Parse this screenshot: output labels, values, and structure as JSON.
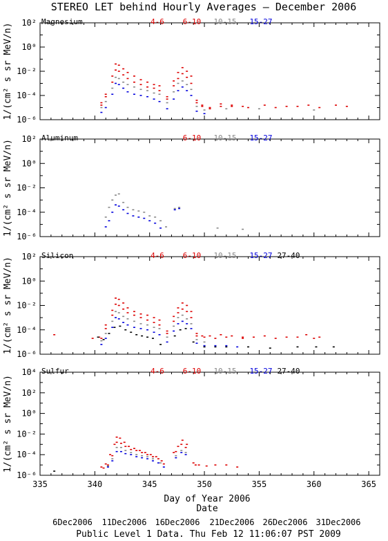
{
  "title": "STEREO LET behind Hourly Averages – December 2006",
  "footer": "Public Level 1 Data. Thu Feb 12 11:06:07 PST 2009",
  "xlabel": "Day of Year 2006",
  "date_label": "Date",
  "ylabel": "1/(cm² s sr MeV/n)",
  "date_ticks": [
    "6Dec2006",
    "11Dec2006",
    "16Dec2006",
    "21Dec2006",
    "26Dec2006",
    "31Dec2006"
  ],
  "colors": {
    "4-6": "#dd0000",
    "6-10": "#dd0000",
    "10-15": "#888888",
    "15-27": "#0000dd",
    "27-40": "#000000"
  },
  "chart_data": [
    {
      "type": "scatter",
      "title": "Magnesium",
      "xlabel": "Day of Year 2006",
      "ylabel": "1/(cm² s sr MeV/n)",
      "xlim": [
        335,
        366
      ],
      "ylim_log10": [
        -6,
        2
      ],
      "yticks": [
        "10²",
        "10⁰",
        "10⁻²",
        "10⁻⁴",
        "10⁻⁶"
      ],
      "xticks": [
        "335",
        "340",
        "345",
        "350",
        "355",
        "360",
        "365"
      ],
      "legend": [
        "4-6",
        "6-10",
        "10-15",
        "15-27"
      ],
      "series": [
        {
          "name": "4-6",
          "color": "#dd0000",
          "x": [
            340.6,
            341.0,
            341.6,
            341.9,
            342.2,
            342.6,
            343.0,
            343.6,
            344.2,
            344.8,
            345.4,
            345.9,
            346.6,
            347.2,
            347.6,
            348.0,
            348.4,
            348.8,
            349.3,
            349.8,
            350.5,
            351.5,
            352.5,
            353.5,
            355.5,
            357.5,
            359.5,
            362.0
          ],
          "y": [
            -4.6,
            -3.9,
            -2.4,
            -1.4,
            -1.5,
            -1.8,
            -2.1,
            -2.4,
            -2.7,
            -2.9,
            -3.1,
            -3.2,
            -4.1,
            -2.8,
            -2.1,
            -1.7,
            -2.0,
            -2.4,
            -4.4,
            -4.8,
            -5.0,
            -4.7,
            -4.8,
            -4.9,
            -4.8,
            -4.9,
            -4.8,
            -4.8
          ]
        },
        {
          "name": "6-10",
          "color": "#dd0000",
          "x": [
            340.6,
            341.0,
            341.6,
            341.9,
            342.2,
            342.6,
            343.0,
            343.6,
            344.2,
            344.8,
            345.4,
            345.9,
            346.6,
            347.2,
            347.6,
            348.0,
            348.4,
            348.8,
            349.3,
            349.8,
            350.5,
            351.5,
            352.5,
            354.0,
            356.5,
            358.5,
            360.5,
            363.0
          ],
          "y": [
            -4.8,
            -4.1,
            -2.9,
            -1.9,
            -2.0,
            -2.3,
            -2.6,
            -2.9,
            -3.1,
            -3.3,
            -3.4,
            -3.6,
            -4.3,
            -3.2,
            -2.6,
            -2.2,
            -2.5,
            -3.0,
            -4.6,
            -4.9,
            -5.1,
            -4.9,
            -4.9,
            -5.0,
            -5.0,
            -4.9,
            -5.0,
            -4.9
          ]
        },
        {
          "name": "10-15",
          "color": "#888888",
          "x": [
            340.6,
            341.0,
            341.6,
            341.9,
            342.2,
            342.6,
            343.0,
            343.6,
            344.2,
            344.8,
            345.4,
            345.9,
            346.6,
            347.2,
            347.6,
            348.0,
            348.4,
            348.8,
            349.3,
            350.0,
            352.0,
            355.0,
            360.0
          ],
          "y": [
            -5.0,
            -4.5,
            -3.4,
            -2.5,
            -2.6,
            -2.9,
            -3.1,
            -3.3,
            -3.5,
            -3.6,
            -3.8,
            -3.9,
            -4.6,
            -3.7,
            -3.0,
            -2.8,
            -3.1,
            -3.5,
            -4.9,
            -5.2,
            -5.1,
            -5.1,
            -5.2
          ]
        },
        {
          "name": "15-27",
          "color": "#0000dd",
          "x": [
            340.6,
            341.0,
            341.6,
            341.9,
            342.2,
            342.6,
            343.0,
            343.6,
            344.2,
            344.8,
            345.4,
            345.9,
            346.6,
            347.2,
            347.6,
            348.0,
            348.4,
            348.8,
            349.3,
            350.0
          ],
          "y": [
            -5.4,
            -5.0,
            -3.9,
            -3.0,
            -3.1,
            -3.4,
            -3.7,
            -3.9,
            -4.0,
            -4.1,
            -4.3,
            -4.5,
            -5.1,
            -4.3,
            -3.6,
            -3.3,
            -3.6,
            -4.0,
            -5.3,
            -5.5
          ]
        }
      ]
    },
    {
      "type": "scatter",
      "title": "Aluminum",
      "xlabel": "Day of Year 2006",
      "ylabel": "1/(cm² s sr MeV/n)",
      "xlim": [
        335,
        366
      ],
      "ylim_log10": [
        -6,
        2
      ],
      "yticks": [
        "10²",
        "10⁰",
        "10⁻²",
        "10⁻⁴",
        "10⁻⁶"
      ],
      "xticks": [
        "335",
        "340",
        "345",
        "350",
        "355",
        "360",
        "365"
      ],
      "legend": [
        "6-10",
        "10-15",
        "15-27"
      ],
      "series": [
        {
          "name": "10-15",
          "color": "#888888",
          "x": [
            341.0,
            341.3,
            341.6,
            341.9,
            342.2,
            342.6,
            343.0,
            343.5,
            344.0,
            344.5,
            345.0,
            345.5,
            346.0,
            346.5,
            347.3,
            347.7,
            351.2,
            353.5
          ],
          "y": [
            -4.4,
            -3.6,
            -3.0,
            -2.6,
            -2.5,
            -3.2,
            -3.6,
            -3.8,
            -3.9,
            -4.0,
            -4.3,
            -4.4,
            -4.7,
            -5.2,
            -3.7,
            -3.6,
            -5.3,
            -5.4
          ]
        },
        {
          "name": "15-27",
          "color": "#0000dd",
          "x": [
            341.0,
            341.3,
            341.6,
            341.9,
            342.2,
            342.6,
            343.0,
            343.5,
            344.0,
            344.5,
            345.0,
            345.5,
            346.0,
            347.3,
            347.7
          ],
          "y": [
            -5.2,
            -4.7,
            -4.0,
            -3.4,
            -3.5,
            -3.8,
            -4.1,
            -4.3,
            -4.4,
            -4.5,
            -4.7,
            -4.9,
            -5.3,
            -3.8,
            -3.7
          ]
        }
      ]
    },
    {
      "type": "scatter",
      "title": "Silicon",
      "xlabel": "Day of Year 2006",
      "ylabel": "1/(cm² s sr MeV/n)",
      "xlim": [
        335,
        366
      ],
      "ylim_log10": [
        -6,
        2
      ],
      "yticks": [
        "10²",
        "10⁰",
        "10⁻²",
        "10⁻⁴",
        "10⁻⁶"
      ],
      "xticks": [
        "335",
        "340",
        "345",
        "350",
        "355",
        "360",
        "365"
      ],
      "legend": [
        "4-6",
        "6-10",
        "10-15",
        "15-27",
        "27-40"
      ],
      "series": [
        {
          "name": "4-6",
          "color": "#dd0000",
          "x": [
            336.3,
            339.8,
            340.4,
            341.0,
            341.6,
            341.9,
            342.2,
            342.6,
            343.0,
            343.6,
            344.2,
            344.8,
            345.4,
            345.9,
            346.6,
            347.2,
            347.6,
            348.0,
            348.4,
            348.8,
            349.3,
            349.8,
            350.5,
            351.5,
            352.5,
            353.5,
            355.5,
            357.5,
            359.3,
            360.5
          ],
          "y": [
            -4.4,
            -4.7,
            -4.6,
            -3.6,
            -2.4,
            -1.4,
            -1.5,
            -1.8,
            -2.2,
            -2.5,
            -2.7,
            -2.8,
            -3.0,
            -3.2,
            -4.1,
            -2.9,
            -2.2,
            -1.8,
            -2.0,
            -2.5,
            -4.3,
            -4.5,
            -4.5,
            -4.4,
            -4.5,
            -4.6,
            -4.5,
            -4.6,
            -4.4,
            -4.6
          ]
        },
        {
          "name": "6-10",
          "color": "#dd0000",
          "x": [
            340.6,
            341.0,
            341.6,
            341.9,
            342.2,
            342.6,
            343.0,
            343.6,
            344.2,
            344.8,
            345.4,
            345.9,
            346.6,
            347.2,
            347.6,
            348.0,
            348.4,
            348.8,
            349.3,
            350.0,
            351.0,
            352.0,
            353.5,
            354.5,
            356.5,
            358.5,
            360.0
          ],
          "y": [
            -4.7,
            -3.9,
            -2.8,
            -1.9,
            -2.0,
            -2.3,
            -2.6,
            -2.8,
            -3.0,
            -3.2,
            -3.4,
            -3.6,
            -4.3,
            -3.3,
            -2.6,
            -2.3,
            -2.5,
            -3.0,
            -4.5,
            -4.6,
            -4.7,
            -4.6,
            -4.7,
            -4.6,
            -4.7,
            -4.6,
            -4.7
          ]
        },
        {
          "name": "10-15",
          "color": "#888888",
          "x": [
            340.6,
            341.0,
            341.6,
            341.9,
            342.2,
            342.6,
            343.0,
            343.6,
            344.2,
            344.8,
            345.4,
            345.9,
            346.6,
            347.2,
            347.6,
            348.0,
            348.4,
            348.8,
            349.3,
            350.0
          ],
          "y": [
            -4.9,
            -4.3,
            -3.3,
            -2.5,
            -2.6,
            -2.9,
            -3.1,
            -3.3,
            -3.5,
            -3.6,
            -3.8,
            -3.9,
            -4.6,
            -3.7,
            -3.0,
            -2.8,
            -3.1,
            -3.5,
            -4.8,
            -5.0
          ]
        },
        {
          "name": "15-27",
          "color": "#0000dd",
          "x": [
            340.6,
            341.0,
            341.6,
            341.9,
            342.2,
            342.6,
            343.0,
            343.6,
            344.2,
            344.8,
            345.4,
            345.9,
            346.6,
            347.2,
            347.6,
            348.0,
            348.4,
            348.8,
            349.3,
            350.0,
            351.0,
            352.0,
            353.0
          ],
          "y": [
            -5.2,
            -4.7,
            -3.8,
            -3.0,
            -3.1,
            -3.4,
            -3.6,
            -3.8,
            -3.9,
            -4.0,
            -4.2,
            -4.4,
            -5.0,
            -4.1,
            -3.5,
            -3.3,
            -3.5,
            -3.9,
            -5.1,
            -5.3,
            -5.3,
            -5.3,
            -5.4
          ]
        },
        {
          "name": "27-40",
          "color": "#000000",
          "x": [
            340.3,
            340.8,
            341.3,
            341.8,
            342.3,
            342.8,
            343.3,
            343.8,
            344.3,
            344.8,
            345.3,
            346.0,
            347.3,
            347.8,
            348.3,
            349.0,
            350.0,
            351.0,
            352.0,
            354.0,
            356.0,
            358.5,
            360.2,
            361.8
          ],
          "y": [
            -4.6,
            -4.8,
            -4.3,
            -3.8,
            -3.7,
            -4.0,
            -4.2,
            -4.4,
            -4.5,
            -4.6,
            -4.7,
            -5.2,
            -4.5,
            -4.0,
            -3.9,
            -5.0,
            -5.4,
            -5.4,
            -5.4,
            -5.4,
            -5.5,
            -5.4,
            -5.4,
            -5.4
          ]
        }
      ]
    },
    {
      "type": "scatter",
      "title": "Sulfur",
      "xlabel": "Day of Year 2006",
      "ylabel": "1/(cm² s sr MeV/n)",
      "xlim": [
        335,
        366
      ],
      "ylim_log10": [
        -6,
        4
      ],
      "yticks": [
        "10⁴",
        "10²",
        "10⁰",
        "10⁻²",
        "10⁻⁴",
        "10⁻⁶"
      ],
      "xticks": [
        "335",
        "340",
        "345",
        "350",
        "355",
        "360",
        "365"
      ],
      "legend": [
        "4-6",
        "6-10",
        "10-15",
        "15-27",
        "27-40"
      ],
      "series": [
        {
          "name": "4-6",
          "color": "#dd0000",
          "x": [
            340.6,
            341.0,
            341.4,
            341.8,
            342.0,
            342.3,
            342.7,
            343.1,
            343.6,
            344.1,
            344.6,
            345.1,
            345.6,
            346.1,
            347.2,
            347.6,
            348.0,
            348.4,
            349.0,
            349.5,
            350.2,
            351.0,
            352.0,
            353.0
          ],
          "y": [
            -5.2,
            -4.9,
            -4.0,
            -3.0,
            -2.3,
            -2.4,
            -2.8,
            -3.2,
            -3.4,
            -3.6,
            -3.8,
            -4.0,
            -4.2,
            -4.6,
            -3.8,
            -3.2,
            -2.6,
            -3.0,
            -4.8,
            -5.0,
            -5.1,
            -5.0,
            -5.0,
            -5.2
          ]
        },
        {
          "name": "6-10",
          "color": "#dd0000",
          "x": [
            340.8,
            341.2,
            341.6,
            342.0,
            342.4,
            342.8,
            343.3,
            343.8,
            344.3,
            344.8,
            345.3,
            345.8,
            346.3,
            347.4,
            347.9,
            348.3,
            349.2
          ],
          "y": [
            -5.3,
            -5.0,
            -4.1,
            -2.8,
            -2.9,
            -3.2,
            -3.5,
            -3.6,
            -3.8,
            -4.0,
            -4.2,
            -4.4,
            -4.9,
            -3.7,
            -3.0,
            -3.3,
            -5.0
          ]
        },
        {
          "name": "10-15",
          "color": "#888888",
          "x": [
            341.2,
            341.6,
            342.0,
            342.4,
            342.8,
            343.3,
            343.8,
            344.3,
            344.8,
            345.3,
            346.0,
            347.4,
            347.9,
            348.3
          ],
          "y": [
            -5.1,
            -4.4,
            -3.3,
            -3.3,
            -3.6,
            -3.8,
            -4.0,
            -4.1,
            -4.2,
            -4.4,
            -4.8,
            -4.1,
            -3.6,
            -3.8
          ]
        },
        {
          "name": "15-27",
          "color": "#0000dd",
          "x": [
            341.2,
            341.6,
            342.0,
            342.4,
            342.8,
            343.3,
            343.8,
            344.3,
            344.8,
            345.3,
            345.8,
            346.3,
            347.4,
            347.9,
            348.3
          ],
          "y": [
            -5.2,
            -4.6,
            -3.7,
            -3.7,
            -3.9,
            -4.0,
            -4.2,
            -4.3,
            -4.4,
            -4.6,
            -4.8,
            -5.2,
            -4.3,
            -3.8,
            -4.0
          ]
        },
        {
          "name": "27-40",
          "color": "#000000",
          "x": [
            336.3
          ],
          "y": [
            -5.6
          ]
        }
      ]
    }
  ]
}
